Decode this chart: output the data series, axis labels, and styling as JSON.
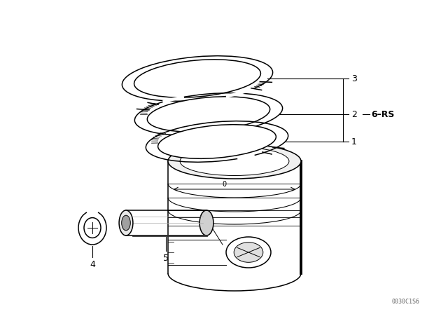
{
  "bg_color": "#ffffff",
  "line_color": "#000000",
  "fig_width": 6.4,
  "fig_height": 4.48,
  "dpi": 100,
  "label_rs": "6–RS",
  "watermark": "0030C1S6"
}
